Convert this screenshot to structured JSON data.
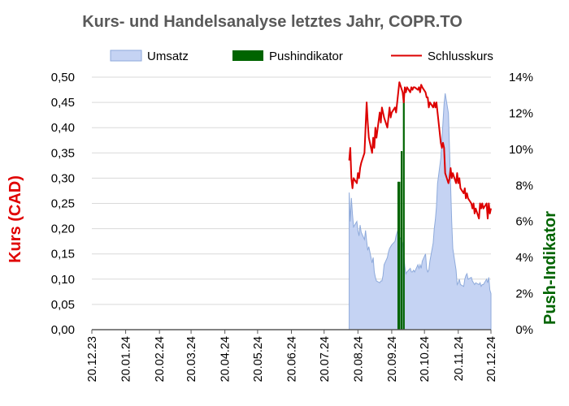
{
  "chart_data": {
    "type": "line",
    "title": "Kurs- und Handelsanalyse letztes Jahr, COPR.TO",
    "ylabel_left": "Kurs (CAD)",
    "ylabel_right": "Push-Indikator",
    "ylim_left": [
      0,
      0.5
    ],
    "ylim_right": [
      0,
      14
    ],
    "y_ticks_left": [
      "0,00",
      "0,05",
      "0,10",
      "0,15",
      "0,20",
      "0,25",
      "0,30",
      "0,35",
      "0,40",
      "0,45",
      "0,50"
    ],
    "y_ticks_right": [
      "0%",
      "2%",
      "4%",
      "6%",
      "8%",
      "10%",
      "12%",
      "14%"
    ],
    "x_range": [
      "2023-12-20",
      "2024-12-20"
    ],
    "x_ticks": [
      "20.12.23",
      "20.01.24",
      "20.02.24",
      "20.03.24",
      "20.04.24",
      "20.05.24",
      "20.06.24",
      "20.07.24",
      "20.08.24",
      "20.09.24",
      "20.10.24",
      "20.11.24",
      "20.12.24"
    ],
    "x_tick_dates": [
      "2023-12-20",
      "2024-01-20",
      "2024-02-20",
      "2024-03-20",
      "2024-04-20",
      "2024-05-20",
      "2024-06-20",
      "2024-07-20",
      "2024-08-20",
      "2024-09-20",
      "2024-10-20",
      "2024-11-20",
      "2024-12-20"
    ],
    "legend": {
      "placement": "top"
    },
    "colors": {
      "volume_fill": "#c5d3f3",
      "volume_line": "#8eaadb",
      "push": "#006400",
      "close": "#dd0000"
    },
    "series": [
      {
        "name": "Umsatz",
        "kind": "area",
        "axis": "right",
        "unit": "%",
        "points": [
          [
            "2024-08-12",
            0
          ],
          [
            "2024-08-12",
            7.6
          ],
          [
            "2024-08-13",
            6.0
          ],
          [
            "2024-08-14",
            7.3
          ],
          [
            "2024-08-15",
            6.4
          ],
          [
            "2024-08-16",
            5.7
          ],
          [
            "2024-08-19",
            6.0
          ],
          [
            "2024-08-20",
            5.5
          ],
          [
            "2024-08-21",
            5.2
          ],
          [
            "2024-08-22",
            5.8
          ],
          [
            "2024-08-23",
            5.4
          ],
          [
            "2024-08-26",
            5.0
          ],
          [
            "2024-08-27",
            5.5
          ],
          [
            "2024-08-28",
            4.9
          ],
          [
            "2024-08-29",
            4.4
          ],
          [
            "2024-08-30",
            4.6
          ],
          [
            "2024-09-02",
            3.7
          ],
          [
            "2024-09-03",
            4.0
          ],
          [
            "2024-09-04",
            3.2
          ],
          [
            "2024-09-05",
            2.9
          ],
          [
            "2024-09-06",
            2.7
          ],
          [
            "2024-09-09",
            2.6
          ],
          [
            "2024-09-10",
            2.7
          ],
          [
            "2024-09-11",
            2.7
          ],
          [
            "2024-09-12",
            3.0
          ],
          [
            "2024-09-13",
            3.6
          ],
          [
            "2024-09-16",
            4.0
          ],
          [
            "2024-09-17",
            4.3
          ],
          [
            "2024-09-18",
            4.5
          ],
          [
            "2024-09-19",
            4.6
          ],
          [
            "2024-09-20",
            4.7
          ],
          [
            "2024-09-23",
            4.9
          ],
          [
            "2024-09-24",
            5.2
          ],
          [
            "2024-09-25",
            5.4
          ],
          [
            "2024-09-26",
            5.6
          ],
          [
            "2024-09-27",
            5.2
          ],
          [
            "2024-09-30",
            4.8
          ],
          [
            "2024-10-01",
            4.2
          ],
          [
            "2024-10-02",
            3.5
          ],
          [
            "2024-10-03",
            3.1
          ],
          [
            "2024-10-04",
            3.2
          ],
          [
            "2024-10-07",
            3.4
          ],
          [
            "2024-10-08",
            3.2
          ],
          [
            "2024-10-09",
            3.2
          ],
          [
            "2024-10-10",
            3.3
          ],
          [
            "2024-10-11",
            3.2
          ],
          [
            "2024-10-14",
            3.6
          ],
          [
            "2024-10-15",
            3.4
          ],
          [
            "2024-10-16",
            3.6
          ],
          [
            "2024-10-17",
            3.4
          ],
          [
            "2024-10-18",
            3.8
          ],
          [
            "2024-10-21",
            4.2
          ],
          [
            "2024-10-22",
            3.4
          ],
          [
            "2024-10-23",
            3.2
          ],
          [
            "2024-10-24",
            3.3
          ],
          [
            "2024-10-25",
            3.8
          ],
          [
            "2024-10-28",
            4.8
          ],
          [
            "2024-10-29",
            5.6
          ],
          [
            "2024-10-30",
            6.1
          ],
          [
            "2024-10-31",
            6.8
          ],
          [
            "2024-11-01",
            8.1
          ],
          [
            "2024-11-04",
            9.5
          ],
          [
            "2024-11-05",
            10.5
          ],
          [
            "2024-11-06",
            11.5
          ],
          [
            "2024-11-07",
            12.5
          ],
          [
            "2024-11-08",
            13.1
          ],
          [
            "2024-11-11",
            12.0
          ],
          [
            "2024-11-12",
            10.0
          ],
          [
            "2024-11-13",
            8.0
          ],
          [
            "2024-11-14",
            6.0
          ],
          [
            "2024-11-15",
            4.5
          ],
          [
            "2024-11-18",
            3.3
          ],
          [
            "2024-11-19",
            2.5
          ],
          [
            "2024-11-20",
            2.6
          ],
          [
            "2024-11-21",
            2.8
          ],
          [
            "2024-11-22",
            2.5
          ],
          [
            "2024-11-25",
            2.4
          ],
          [
            "2024-11-26",
            2.8
          ],
          [
            "2024-11-27",
            3.0
          ],
          [
            "2024-11-28",
            3.1
          ],
          [
            "2024-11-29",
            2.8
          ],
          [
            "2024-12-02",
            2.9
          ],
          [
            "2024-12-03",
            2.7
          ],
          [
            "2024-12-04",
            2.6
          ],
          [
            "2024-12-05",
            2.5
          ],
          [
            "2024-12-06",
            2.6
          ],
          [
            "2024-12-09",
            2.5
          ],
          [
            "2024-12-10",
            2.6
          ],
          [
            "2024-12-11",
            2.4
          ],
          [
            "2024-12-12",
            2.5
          ],
          [
            "2024-12-13",
            2.5
          ],
          [
            "2024-12-16",
            2.8
          ],
          [
            "2024-12-17",
            2.6
          ],
          [
            "2024-12-18",
            2.9
          ],
          [
            "2024-12-19",
            2.2
          ],
          [
            "2024-12-20",
            2.0
          ],
          [
            "2024-12-20",
            0
          ]
        ]
      },
      {
        "name": "Pushindikator",
        "kind": "bar",
        "axis": "right",
        "unit": "%",
        "points": [
          [
            "2024-09-26",
            8.2
          ],
          [
            "2024-09-27",
            8.2
          ],
          [
            "2024-09-29",
            9.9
          ],
          [
            "2024-10-01",
            13.0
          ]
        ]
      },
      {
        "name": "Schlusskurs",
        "kind": "line",
        "axis": "left",
        "unit": "CAD",
        "points": [
          [
            "2024-08-12",
            0.335
          ],
          [
            "2024-08-13",
            0.36
          ],
          [
            "2024-08-14",
            0.3
          ],
          [
            "2024-08-15",
            0.28
          ],
          [
            "2024-08-16",
            0.3
          ],
          [
            "2024-08-19",
            0.29
          ],
          [
            "2024-08-20",
            0.31
          ],
          [
            "2024-08-21",
            0.3
          ],
          [
            "2024-08-22",
            0.32
          ],
          [
            "2024-08-23",
            0.33
          ],
          [
            "2024-08-26",
            0.35
          ],
          [
            "2024-08-27",
            0.4
          ],
          [
            "2024-08-28",
            0.45
          ],
          [
            "2024-08-29",
            0.41
          ],
          [
            "2024-08-30",
            0.38
          ],
          [
            "2024-09-02",
            0.35
          ],
          [
            "2024-09-03",
            0.38
          ],
          [
            "2024-09-04",
            0.36
          ],
          [
            "2024-09-05",
            0.4
          ],
          [
            "2024-09-06",
            0.38
          ],
          [
            "2024-09-09",
            0.43
          ],
          [
            "2024-09-10",
            0.41
          ],
          [
            "2024-09-11",
            0.44
          ],
          [
            "2024-09-12",
            0.43
          ],
          [
            "2024-09-13",
            0.42
          ],
          [
            "2024-09-16",
            0.4
          ],
          [
            "2024-09-17",
            0.42
          ],
          [
            "2024-09-18",
            0.44
          ],
          [
            "2024-09-19",
            0.42
          ],
          [
            "2024-09-20",
            0.43
          ],
          [
            "2024-09-23",
            0.44
          ],
          [
            "2024-09-24",
            0.43
          ],
          [
            "2024-09-25",
            0.45
          ],
          [
            "2024-09-26",
            0.47
          ],
          [
            "2024-09-27",
            0.49
          ],
          [
            "2024-09-30",
            0.47
          ],
          [
            "2024-10-01",
            0.45
          ],
          [
            "2024-10-02",
            0.48
          ],
          [
            "2024-10-03",
            0.47
          ],
          [
            "2024-10-04",
            0.48
          ],
          [
            "2024-10-07",
            0.47
          ],
          [
            "2024-10-08",
            0.48
          ],
          [
            "2024-10-09",
            0.475
          ],
          [
            "2024-10-10",
            0.48
          ],
          [
            "2024-10-11",
            0.48
          ],
          [
            "2024-10-14",
            0.475
          ],
          [
            "2024-10-15",
            0.48
          ],
          [
            "2024-10-16",
            0.47
          ],
          [
            "2024-10-17",
            0.485
          ],
          [
            "2024-10-18",
            0.48
          ],
          [
            "2024-10-21",
            0.47
          ],
          [
            "2024-10-22",
            0.46
          ],
          [
            "2024-10-23",
            0.46
          ],
          [
            "2024-10-24",
            0.44
          ],
          [
            "2024-10-25",
            0.45
          ],
          [
            "2024-10-28",
            0.44
          ],
          [
            "2024-10-29",
            0.45
          ],
          [
            "2024-10-30",
            0.44
          ],
          [
            "2024-10-31",
            0.45
          ],
          [
            "2024-11-01",
            0.43
          ],
          [
            "2024-11-04",
            0.37
          ],
          [
            "2024-11-05",
            0.36
          ],
          [
            "2024-11-06",
            0.37
          ],
          [
            "2024-11-07",
            0.36
          ],
          [
            "2024-11-08",
            0.31
          ],
          [
            "2024-11-11",
            0.29
          ],
          [
            "2024-11-12",
            0.3
          ],
          [
            "2024-11-13",
            0.32
          ],
          [
            "2024-11-14",
            0.3
          ],
          [
            "2024-11-15",
            0.31
          ],
          [
            "2024-11-18",
            0.29
          ],
          [
            "2024-11-19",
            0.31
          ],
          [
            "2024-11-20",
            0.29
          ],
          [
            "2024-11-21",
            0.3
          ],
          [
            "2024-11-22",
            0.28
          ],
          [
            "2024-11-25",
            0.27
          ],
          [
            "2024-11-26",
            0.28
          ],
          [
            "2024-11-27",
            0.26
          ],
          [
            "2024-11-28",
            0.27
          ],
          [
            "2024-11-29",
            0.26
          ],
          [
            "2024-12-02",
            0.25
          ],
          [
            "2024-12-03",
            0.24
          ],
          [
            "2024-12-04",
            0.25
          ],
          [
            "2024-12-05",
            0.23
          ],
          [
            "2024-12-06",
            0.24
          ],
          [
            "2024-12-09",
            0.22
          ],
          [
            "2024-12-10",
            0.25
          ],
          [
            "2024-12-11",
            0.24
          ],
          [
            "2024-12-12",
            0.25
          ],
          [
            "2024-12-13",
            0.24
          ],
          [
            "2024-12-16",
            0.25
          ],
          [
            "2024-12-17",
            0.22
          ],
          [
            "2024-12-18",
            0.25
          ],
          [
            "2024-12-19",
            0.23
          ],
          [
            "2024-12-20",
            0.24
          ]
        ]
      }
    ]
  }
}
